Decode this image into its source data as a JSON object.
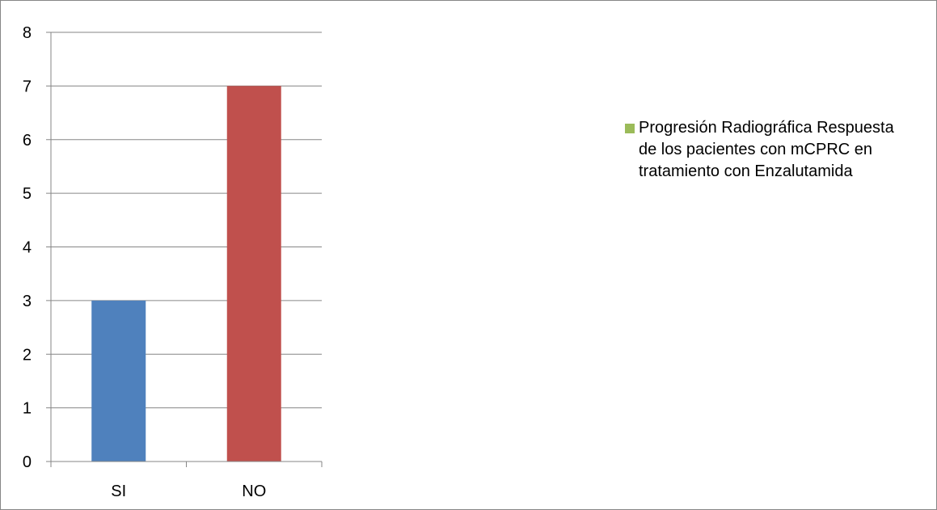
{
  "chart_data": {
    "type": "bar",
    "categories": [
      "SI",
      "NO"
    ],
    "series": [
      {
        "name": "Progresión Radiográfica Respuesta de los pacientes con mCPRC en tratamiento con Enzalutamida",
        "values": [
          3,
          7
        ],
        "bar_colors": [
          "#4F81BD",
          "#C0504D"
        ],
        "legend_color": "#9BBB59"
      }
    ],
    "title": "",
    "xlabel": "",
    "ylabel": "",
    "ylim": [
      0,
      8
    ],
    "yticks": [
      "0",
      "1",
      "2",
      "3",
      "4",
      "5",
      "6",
      "7",
      "8"
    ],
    "grid": true,
    "legend_position": "right"
  }
}
